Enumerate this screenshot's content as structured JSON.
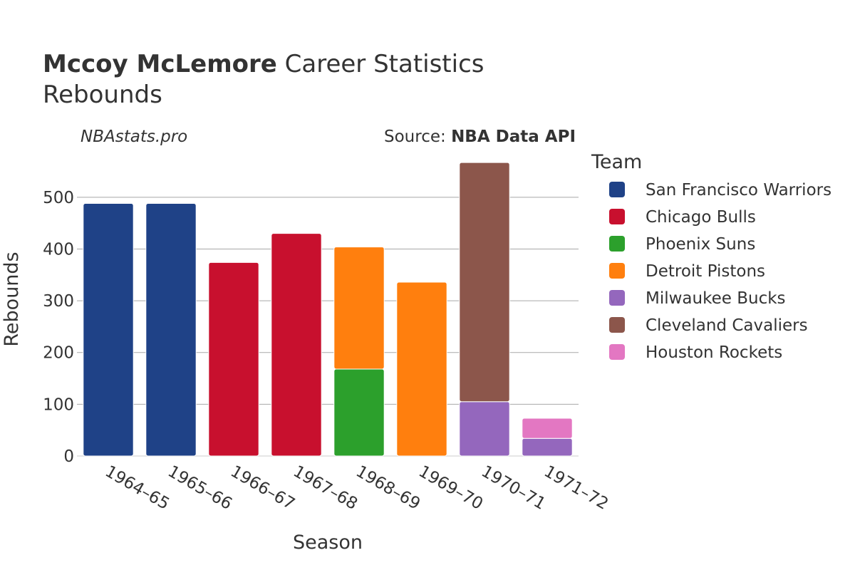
{
  "title": {
    "player": "Mccoy McLemore",
    "suffix": " Career Statistics",
    "subtitle": "Rebounds"
  },
  "watermark": "NBAstats.pro",
  "source": {
    "prefix": "Source: ",
    "name": "NBA Data API"
  },
  "chart_data": {
    "type": "bar",
    "stacked": true,
    "xlabel": "Season",
    "ylabel": "Rebounds",
    "ylim": [
      0,
      570
    ],
    "yticks": [
      0,
      100,
      200,
      300,
      400,
      500
    ],
    "grid": true,
    "legend_title": "Team",
    "legend_position": "right",
    "categories": [
      "1964–65",
      "1965–66",
      "1966–67",
      "1967–68",
      "1968–69",
      "1969–70",
      "1970–71",
      "1971–72"
    ],
    "series": [
      {
        "name": "San Francisco Warriors",
        "color": "#1f4287",
        "values": [
          488,
          488,
          0,
          0,
          0,
          0,
          0,
          0
        ]
      },
      {
        "name": "Chicago Bulls",
        "color": "#c8102e",
        "values": [
          0,
          0,
          374,
          430,
          0,
          0,
          0,
          0
        ]
      },
      {
        "name": "Phoenix Suns",
        "color": "#2ca02c",
        "values": [
          0,
          0,
          0,
          0,
          168,
          0,
          0,
          0
        ]
      },
      {
        "name": "Detroit Pistons",
        "color": "#ff7f0e",
        "values": [
          0,
          0,
          0,
          0,
          236,
          336,
          0,
          0
        ]
      },
      {
        "name": "Milwaukee Bucks",
        "color": "#9467bd",
        "values": [
          0,
          0,
          0,
          0,
          0,
          0,
          105,
          34
        ]
      },
      {
        "name": "Cleveland Cavaliers",
        "color": "#8c564b",
        "values": [
          0,
          0,
          0,
          0,
          0,
          0,
          462,
          0
        ]
      },
      {
        "name": "Houston Rockets",
        "color": "#e377c2",
        "values": [
          0,
          0,
          0,
          0,
          0,
          0,
          0,
          39
        ]
      }
    ]
  }
}
